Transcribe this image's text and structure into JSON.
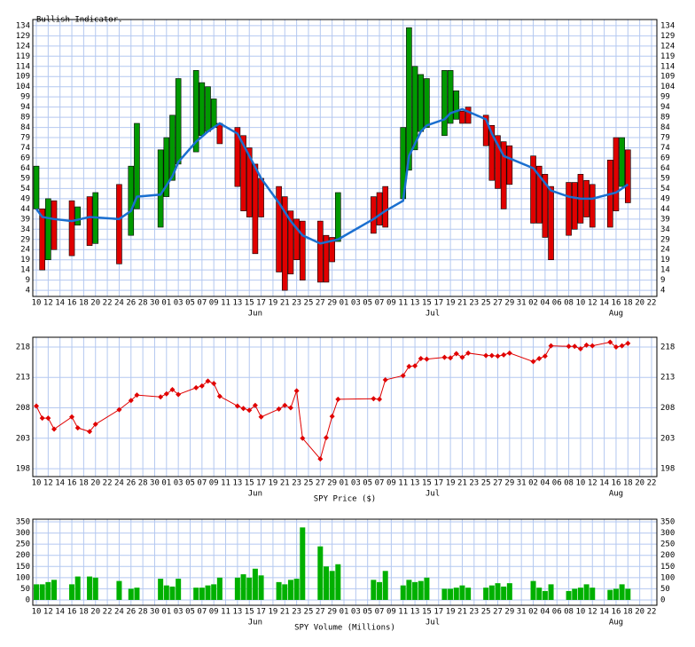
{
  "chart_data": [
    {
      "type": "candlestick",
      "title": "Bullish Indicator.",
      "up_color": "#009900",
      "down_color": "#e00000",
      "xlim": [
        -0.6,
        104.9
      ],
      "xticks": [
        {
          "value": 0,
          "label": "10"
        },
        {
          "value": 2,
          "label": "12"
        },
        {
          "value": 4,
          "label": "14"
        },
        {
          "value": 6,
          "label": "16"
        },
        {
          "value": 8,
          "label": "18"
        },
        {
          "value": 10,
          "label": "20"
        },
        {
          "value": 12,
          "label": "22"
        },
        {
          "value": 14,
          "label": "24"
        },
        {
          "value": 16,
          "label": "26"
        },
        {
          "value": 18,
          "label": "28"
        },
        {
          "value": 20,
          "label": "30"
        },
        {
          "value": 22,
          "label": "01"
        },
        {
          "value": 24,
          "label": "03"
        },
        {
          "value": 26,
          "label": "05"
        },
        {
          "value": 28,
          "label": "07"
        },
        {
          "value": 30,
          "label": "09"
        },
        {
          "value": 32,
          "label": "11"
        },
        {
          "value": 34,
          "label": "13"
        },
        {
          "value": 36,
          "label": "15"
        },
        {
          "value": 38,
          "label": "17"
        },
        {
          "value": 40,
          "label": "19"
        },
        {
          "value": 42,
          "label": "21"
        },
        {
          "value": 44,
          "label": "23"
        },
        {
          "value": 46,
          "label": "25"
        },
        {
          "value": 48,
          "label": "27"
        },
        {
          "value": 50,
          "label": "29"
        },
        {
          "value": 52,
          "label": "01"
        },
        {
          "value": 54,
          "label": "03"
        },
        {
          "value": 56,
          "label": "05"
        },
        {
          "value": 58,
          "label": "07"
        },
        {
          "value": 60,
          "label": "09"
        },
        {
          "value": 62,
          "label": "11"
        },
        {
          "value": 64,
          "label": "13"
        },
        {
          "value": 66,
          "label": "15"
        },
        {
          "value": 68,
          "label": "17"
        },
        {
          "value": 70,
          "label": "19"
        },
        {
          "value": 72,
          "label": "21"
        },
        {
          "value": 74,
          "label": "23"
        },
        {
          "value": 76,
          "label": "25"
        },
        {
          "value": 78,
          "label": "27"
        },
        {
          "value": 80,
          "label": "29"
        },
        {
          "value": 82,
          "label": "31"
        },
        {
          "value": 84,
          "label": "02"
        },
        {
          "value": 86,
          "label": "04"
        },
        {
          "value": 88,
          "label": "06"
        },
        {
          "value": 90,
          "label": "08"
        },
        {
          "value": 92,
          "label": "10"
        },
        {
          "value": 94,
          "label": "12"
        },
        {
          "value": 96,
          "label": "14"
        },
        {
          "value": 98,
          "label": "16"
        },
        {
          "value": 100,
          "label": "18"
        },
        {
          "value": 102,
          "label": "20"
        },
        {
          "value": 104,
          "label": "22"
        }
      ],
      "month_labels": [
        {
          "value": 37,
          "label": "Jun"
        },
        {
          "value": 67,
          "label": "Jul"
        },
        {
          "value": 98,
          "label": "Aug"
        }
      ],
      "ylim": [
        1,
        137
      ],
      "yticks": [
        4,
        9,
        14,
        19,
        24,
        29,
        34,
        39,
        44,
        49,
        54,
        59,
        64,
        69,
        74,
        79,
        84,
        89,
        94,
        99,
        104,
        109,
        114,
        119,
        124,
        129,
        134
      ],
      "x": [
        0,
        1,
        2,
        3,
        6,
        7,
        9,
        10,
        14,
        16,
        17,
        21,
        22,
        23,
        24,
        27,
        28,
        29,
        30,
        31,
        34,
        35,
        36,
        37,
        38,
        41,
        42,
        43,
        44,
        45,
        48,
        49,
        50,
        51,
        57,
        58,
        59,
        62,
        63,
        64,
        65,
        66,
        69,
        70,
        71,
        72,
        73,
        76,
        77,
        78,
        79,
        80,
        84,
        85,
        86,
        87,
        90,
        91,
        92,
        93,
        94,
        97,
        98,
        99,
        100
      ],
      "open": [
        44,
        44,
        19,
        48,
        48,
        36,
        50,
        27,
        56,
        31,
        44,
        35,
        50,
        58,
        66,
        72,
        80,
        82,
        84,
        86,
        84,
        80,
        74,
        66,
        59,
        55,
        50,
        43,
        39,
        38,
        38,
        31,
        30,
        28,
        50,
        52,
        55,
        49,
        63,
        73,
        82,
        84,
        80,
        86,
        88,
        92,
        94,
        90,
        85,
        80,
        77,
        75,
        70,
        65,
        61,
        55,
        57,
        57,
        61,
        58,
        56,
        68,
        79,
        55,
        73
      ],
      "close": [
        65,
        14,
        49,
        24,
        21,
        45,
        26,
        52,
        17,
        65,
        86,
        73,
        79,
        90,
        108,
        112,
        106,
        104,
        98,
        76,
        55,
        43,
        40,
        22,
        40,
        13,
        4,
        12,
        19,
        9,
        8,
        8,
        18,
        52,
        32,
        36,
        35,
        84,
        133,
        114,
        110,
        108,
        112,
        112,
        102,
        86,
        86,
        75,
        58,
        54,
        44,
        56,
        37,
        37,
        30,
        19,
        31,
        34,
        37,
        40,
        35,
        35,
        43,
        79,
        47
      ],
      "average": {
        "color": "#1a6fd0",
        "x": [
          0,
          1,
          3,
          6,
          9,
          14,
          16,
          17,
          21,
          23,
          24,
          27,
          29,
          31,
          34,
          36,
          38,
          41,
          43,
          45,
          48,
          51,
          57,
          59,
          62,
          63,
          65,
          66,
          69,
          70,
          72,
          76,
          77,
          79,
          84,
          87,
          90,
          92,
          94,
          98,
          100
        ],
        "values": [
          44,
          40,
          39,
          38,
          40,
          39,
          43,
          50,
          51,
          60,
          67,
          77,
          82,
          86,
          81,
          70,
          59,
          47,
          38,
          31,
          27,
          29,
          39,
          43,
          48,
          70,
          82,
          85,
          88,
          91,
          93,
          88,
          81,
          70,
          64,
          53,
          50,
          49,
          49,
          52,
          56
        ]
      }
    },
    {
      "type": "line",
      "title": "SPY Price ($)",
      "color": "#e00000",
      "xlim": [
        -0.6,
        104.9
      ],
      "xticks": [
        {
          "value": 0,
          "label": "10"
        },
        {
          "value": 2,
          "label": "12"
        },
        {
          "value": 4,
          "label": "14"
        },
        {
          "value": 6,
          "label": "16"
        },
        {
          "value": 8,
          "label": "18"
        },
        {
          "value": 10,
          "label": "20"
        },
        {
          "value": 12,
          "label": "22"
        },
        {
          "value": 14,
          "label": "24"
        },
        {
          "value": 16,
          "label": "26"
        },
        {
          "value": 18,
          "label": "28"
        },
        {
          "value": 20,
          "label": "30"
        },
        {
          "value": 22,
          "label": "01"
        },
        {
          "value": 24,
          "label": "03"
        },
        {
          "value": 26,
          "label": "05"
        },
        {
          "value": 28,
          "label": "07"
        },
        {
          "value": 30,
          "label": "09"
        },
        {
          "value": 32,
          "label": "11"
        },
        {
          "value": 34,
          "label": "13"
        },
        {
          "value": 36,
          "label": "15"
        },
        {
          "value": 38,
          "label": "17"
        },
        {
          "value": 40,
          "label": "19"
        },
        {
          "value": 42,
          "label": "21"
        },
        {
          "value": 44,
          "label": "23"
        },
        {
          "value": 46,
          "label": "25"
        },
        {
          "value": 48,
          "label": "27"
        },
        {
          "value": 50,
          "label": "29"
        },
        {
          "value": 52,
          "label": "01"
        },
        {
          "value": 54,
          "label": "03"
        },
        {
          "value": 56,
          "label": "05"
        },
        {
          "value": 58,
          "label": "07"
        },
        {
          "value": 60,
          "label": "09"
        },
        {
          "value": 62,
          "label": "11"
        },
        {
          "value": 64,
          "label": "13"
        },
        {
          "value": 66,
          "label": "15"
        },
        {
          "value": 68,
          "label": "17"
        },
        {
          "value": 70,
          "label": "19"
        },
        {
          "value": 72,
          "label": "21"
        },
        {
          "value": 74,
          "label": "23"
        },
        {
          "value": 76,
          "label": "25"
        },
        {
          "value": 78,
          "label": "27"
        },
        {
          "value": 80,
          "label": "29"
        },
        {
          "value": 82,
          "label": "31"
        },
        {
          "value": 84,
          "label": "02"
        },
        {
          "value": 86,
          "label": "04"
        },
        {
          "value": 88,
          "label": "06"
        },
        {
          "value": 90,
          "label": "08"
        },
        {
          "value": 92,
          "label": "10"
        },
        {
          "value": 94,
          "label": "12"
        },
        {
          "value": 96,
          "label": "14"
        },
        {
          "value": 98,
          "label": "16"
        },
        {
          "value": 100,
          "label": "18"
        },
        {
          "value": 102,
          "label": "20"
        },
        {
          "value": 104,
          "label": "22"
        }
      ],
      "month_labels": [
        {
          "value": 37,
          "label": "Jun"
        },
        {
          "value": 67,
          "label": "Jul"
        },
        {
          "value": 98,
          "label": "Aug"
        }
      ],
      "ylim": [
        196.7,
        219.6
      ],
      "yticks": [
        198,
        203,
        208,
        213,
        218
      ],
      "x": [
        0,
        1,
        2,
        3,
        6,
        7,
        9,
        10,
        14,
        16,
        17,
        21,
        22,
        23,
        24,
        27,
        28,
        29,
        30,
        31,
        34,
        35,
        36,
        37,
        38,
        41,
        42,
        43,
        44,
        45,
        48,
        49,
        50,
        51,
        57,
        58,
        59,
        62,
        63,
        64,
        65,
        66,
        69,
        70,
        71,
        72,
        73,
        76,
        77,
        78,
        79,
        80,
        84,
        85,
        86,
        87,
        90,
        91,
        92,
        93,
        94,
        97,
        98,
        99,
        100
      ],
      "values": [
        208.3,
        206.3,
        206.3,
        204.5,
        206.5,
        204.7,
        204.1,
        205.3,
        207.7,
        209.2,
        210.1,
        209.8,
        210.3,
        211.0,
        210.2,
        211.3,
        211.6,
        212.4,
        212.0,
        209.9,
        208.3,
        207.9,
        207.6,
        208.4,
        206.5,
        207.8,
        208.4,
        208.0,
        210.8,
        203.0,
        199.6,
        203.1,
        206.6,
        209.4,
        209.5,
        209.4,
        212.6,
        213.3,
        214.8,
        214.9,
        216.1,
        216.0,
        216.3,
        216.2,
        216.9,
        216.3,
        217.0,
        216.6,
        216.6,
        216.5,
        216.7,
        217.0,
        215.6,
        216.1,
        216.5,
        218.2,
        218.1,
        218.1,
        217.7,
        218.3,
        218.2,
        218.8,
        218.0,
        218.2,
        218.6
      ]
    },
    {
      "type": "bar",
      "title": "SPY Volume (Millions)",
      "color": "#00b000",
      "xlim": [
        -0.6,
        104.9
      ],
      "xticks": [
        {
          "value": 0,
          "label": "10"
        },
        {
          "value": 2,
          "label": "12"
        },
        {
          "value": 4,
          "label": "14"
        },
        {
          "value": 6,
          "label": "16"
        },
        {
          "value": 8,
          "label": "18"
        },
        {
          "value": 10,
          "label": "20"
        },
        {
          "value": 12,
          "label": "22"
        },
        {
          "value": 14,
          "label": "24"
        },
        {
          "value": 16,
          "label": "26"
        },
        {
          "value": 18,
          "label": "28"
        },
        {
          "value": 20,
          "label": "30"
        },
        {
          "value": 22,
          "label": "01"
        },
        {
          "value": 24,
          "label": "03"
        },
        {
          "value": 26,
          "label": "05"
        },
        {
          "value": 28,
          "label": "07"
        },
        {
          "value": 30,
          "label": "09"
        },
        {
          "value": 32,
          "label": "11"
        },
        {
          "value": 34,
          "label": "13"
        },
        {
          "value": 36,
          "label": "15"
        },
        {
          "value": 38,
          "label": "17"
        },
        {
          "value": 40,
          "label": "19"
        },
        {
          "value": 42,
          "label": "21"
        },
        {
          "value": 44,
          "label": "23"
        },
        {
          "value": 46,
          "label": "25"
        },
        {
          "value": 48,
          "label": "27"
        },
        {
          "value": 50,
          "label": "29"
        },
        {
          "value": 52,
          "label": "01"
        },
        {
          "value": 54,
          "label": "03"
        },
        {
          "value": 56,
          "label": "05"
        },
        {
          "value": 58,
          "label": "07"
        },
        {
          "value": 60,
          "label": "09"
        },
        {
          "value": 62,
          "label": "11"
        },
        {
          "value": 64,
          "label": "13"
        },
        {
          "value": 66,
          "label": "15"
        },
        {
          "value": 68,
          "label": "17"
        },
        {
          "value": 70,
          "label": "19"
        },
        {
          "value": 72,
          "label": "21"
        },
        {
          "value": 74,
          "label": "23"
        },
        {
          "value": 76,
          "label": "25"
        },
        {
          "value": 78,
          "label": "27"
        },
        {
          "value": 80,
          "label": "29"
        },
        {
          "value": 82,
          "label": "31"
        },
        {
          "value": 84,
          "label": "02"
        },
        {
          "value": 86,
          "label": "04"
        },
        {
          "value": 88,
          "label": "06"
        },
        {
          "value": 90,
          "label": "08"
        },
        {
          "value": 92,
          "label": "10"
        },
        {
          "value": 94,
          "label": "12"
        },
        {
          "value": 96,
          "label": "14"
        },
        {
          "value": 98,
          "label": "16"
        },
        {
          "value": 100,
          "label": "18"
        },
        {
          "value": 102,
          "label": "20"
        },
        {
          "value": 104,
          "label": "22"
        }
      ],
      "month_labels": [
        {
          "value": 37,
          "label": "Jun"
        },
        {
          "value": 67,
          "label": "Jul"
        },
        {
          "value": 98,
          "label": "Aug"
        }
      ],
      "ylim": [
        -24,
        362
      ],
      "yticks": [
        0,
        50,
        100,
        150,
        200,
        250,
        300,
        350
      ],
      "x": [
        0,
        1,
        2,
        3,
        6,
        7,
        9,
        10,
        14,
        16,
        17,
        21,
        22,
        23,
        24,
        27,
        28,
        29,
        30,
        31,
        34,
        35,
        36,
        37,
        38,
        41,
        42,
        43,
        44,
        45,
        48,
        49,
        50,
        51,
        57,
        58,
        59,
        62,
        63,
        64,
        65,
        66,
        69,
        70,
        71,
        72,
        73,
        76,
        77,
        78,
        79,
        80,
        84,
        85,
        86,
        87,
        90,
        91,
        92,
        93,
        94,
        97,
        98,
        99,
        100
      ],
      "values": [
        70,
        70,
        80,
        90,
        70,
        105,
        105,
        100,
        85,
        50,
        55,
        95,
        65,
        60,
        95,
        55,
        55,
        65,
        70,
        100,
        100,
        115,
        100,
        140,
        110,
        80,
        70,
        90,
        95,
        325,
        240,
        150,
        130,
        160,
        90,
        80,
        130,
        65,
        90,
        80,
        85,
        100,
        50,
        50,
        55,
        65,
        55,
        55,
        65,
        75,
        60,
        75,
        85,
        55,
        40,
        70,
        40,
        50,
        55,
        70,
        55,
        45,
        50,
        70,
        50
      ]
    }
  ]
}
